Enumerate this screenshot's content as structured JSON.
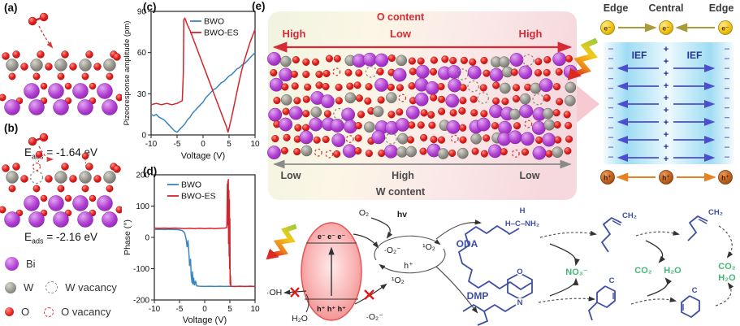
{
  "colors": {
    "bi": "#b13fd2",
    "w": "#93938b",
    "o": "#e01f1f",
    "red_accent": "#d62b36",
    "gray_arrow": "#8a8a8a",
    "molecule_blue": "#3d4fa1",
    "green": "#45b878",
    "bwo_blue": "#3b85c0",
    "bwoes_red": "#d4242c",
    "e_yellow": "#f2c41c",
    "h_orange": "#c2641f",
    "olive_arrow": "#a79b3a",
    "orange_arrow": "#e8811f",
    "ief_arrow": "#4d4dd0"
  },
  "panel_a": {
    "label": "(a)",
    "eads_symbol": "E",
    "eads_sub": "ads",
    "eads_value": "= -1.64 eV"
  },
  "panel_b": {
    "label": "(b)",
    "eads_symbol": "E",
    "eads_sub": "ads",
    "eads_value": "= -2.16 eV"
  },
  "atom_legend": {
    "bi": "Bi",
    "w": "W",
    "w_vacancy": "W vacancy",
    "o": "O",
    "o_vacancy": "O vacancy"
  },
  "chart_data": [
    {
      "id": "c",
      "panel_label": "(c)",
      "type": "line",
      "xlabel": "Voltage (V)",
      "ylabel": "Pizeoresponse amplitude (pm)",
      "xlim": [
        -10,
        10
      ],
      "ylim": [
        0,
        90
      ],
      "xticks": [
        -10,
        -5,
        0,
        5,
        10
      ],
      "yticks": [
        0,
        30,
        60,
        90
      ],
      "grid": false,
      "legend_position": "top-right",
      "series": [
        {
          "name": "BWO",
          "color": "#3b85c0",
          "points": [
            [
              -10,
              15
            ],
            [
              -9.5,
              14
            ],
            [
              -9,
              15
            ],
            [
              -8.5,
              13
            ],
            [
              -8,
              12
            ],
            [
              -7.5,
              11
            ],
            [
              -7,
              9
            ],
            [
              -6.5,
              7
            ],
            [
              -6,
              5
            ],
            [
              -5.5,
              3
            ],
            [
              -5,
              2
            ],
            [
              -4.5,
              4
            ],
            [
              -4,
              6
            ],
            [
              -3.5,
              8
            ],
            [
              -3,
              11
            ],
            [
              -2.5,
              13
            ],
            [
              -2,
              16
            ],
            [
              -1.5,
              18
            ],
            [
              -1,
              20
            ],
            [
              -0.5,
              22
            ],
            [
              0,
              24
            ],
            [
              0.5,
              27
            ],
            [
              1,
              29
            ],
            [
              1.5,
              31
            ],
            [
              2,
              33
            ],
            [
              2.5,
              34
            ],
            [
              3,
              36
            ],
            [
              3.5,
              38
            ],
            [
              4,
              39
            ],
            [
              4.5,
              41
            ],
            [
              5,
              43
            ],
            [
              5.5,
              44
            ],
            [
              6,
              46
            ],
            [
              6.5,
              48
            ],
            [
              7,
              49
            ],
            [
              7.5,
              51
            ],
            [
              8,
              52
            ],
            [
              8.5,
              54
            ],
            [
              9,
              56
            ],
            [
              9.5,
              58
            ],
            [
              10,
              60
            ]
          ]
        },
        {
          "name": "BWO-ES",
          "color": "#d4242c",
          "points": [
            [
              -10,
              22
            ],
            [
              -9,
              23
            ],
            [
              -8,
              22
            ],
            [
              -7,
              23
            ],
            [
              -6,
              22
            ],
            [
              -5,
              23
            ],
            [
              -4.5,
              24
            ],
            [
              -4,
              25
            ],
            [
              -3.8,
              45
            ],
            [
              -3.7,
              84
            ],
            [
              -3.5,
              85
            ],
            [
              -3,
              80
            ],
            [
              -2.5,
              76
            ],
            [
              -2,
              71
            ],
            [
              -1.5,
              66
            ],
            [
              -1,
              61
            ],
            [
              -0.5,
              56
            ],
            [
              0,
              51
            ],
            [
              0.5,
              46
            ],
            [
              1,
              41
            ],
            [
              1.5,
              36
            ],
            [
              2,
              31
            ],
            [
              2.5,
              26
            ],
            [
              3,
              21
            ],
            [
              3.5,
              16
            ],
            [
              4,
              11
            ],
            [
              4.5,
              6
            ],
            [
              4.8,
              2
            ],
            [
              5,
              5
            ],
            [
              5.5,
              13
            ],
            [
              6,
              22
            ],
            [
              6.5,
              31
            ],
            [
              7,
              40
            ],
            [
              7.5,
              48
            ],
            [
              8,
              55
            ],
            [
              8.5,
              61
            ],
            [
              9,
              67
            ],
            [
              9.5,
              72
            ],
            [
              10,
              77
            ]
          ]
        }
      ]
    },
    {
      "id": "d",
      "panel_label": "(d)",
      "type": "line",
      "xlabel": "Voltage (V)",
      "ylabel": "Phase (°)",
      "xlim": [
        -10,
        10
      ],
      "ylim": [
        -200,
        200
      ],
      "xticks": [
        -10,
        -5,
        0,
        5,
        10
      ],
      "yticks": [
        -200,
        -100,
        0,
        100,
        200
      ],
      "grid": false,
      "legend_position": "top-left",
      "series": [
        {
          "name": "BWO",
          "color": "#3b85c0",
          "points": [
            [
              -10,
              25
            ],
            [
              -9,
              26
            ],
            [
              -8,
              25
            ],
            [
              -7,
              26
            ],
            [
              -6,
              25
            ],
            [
              -5.5,
              25
            ],
            [
              -5,
              24
            ],
            [
              -4.5,
              22
            ],
            [
              -4,
              15
            ],
            [
              -3.7,
              -5
            ],
            [
              -3.5,
              -30
            ],
            [
              -3.3,
              -10
            ],
            [
              -3.1,
              -60
            ],
            [
              -3,
              -90
            ],
            [
              -2.8,
              -70
            ],
            [
              -2.7,
              -120
            ],
            [
              -2.5,
              -145
            ],
            [
              -2.4,
              -110
            ],
            [
              -2.3,
              -150
            ],
            [
              -2.2,
              -130
            ],
            [
              -2,
              -152
            ],
            [
              -1.8,
              -140
            ],
            [
              -1.6,
              -155
            ],
            [
              -1,
              -156
            ],
            [
              0,
              -157
            ],
            [
              1,
              -156
            ],
            [
              2,
              -157
            ],
            [
              3,
              -156
            ],
            [
              4,
              -157
            ],
            [
              5,
              -156
            ],
            [
              6,
              -157
            ],
            [
              7,
              -156
            ],
            [
              8,
              -157
            ],
            [
              9,
              -156
            ],
            [
              10,
              -157
            ]
          ]
        },
        {
          "name": "BWO-ES",
          "color": "#d4242c",
          "points": [
            [
              -10,
              30
            ],
            [
              -9,
              29
            ],
            [
              -8,
              30
            ],
            [
              -7,
              29
            ],
            [
              -6,
              30
            ],
            [
              -5,
              29
            ],
            [
              -4,
              28
            ],
            [
              -3,
              29
            ],
            [
              -2,
              28
            ],
            [
              -1,
              29
            ],
            [
              0,
              28
            ],
            [
              1,
              29
            ],
            [
              2,
              28
            ],
            [
              3,
              29
            ],
            [
              4,
              30
            ],
            [
              4.4,
              32
            ],
            [
              4.5,
              170
            ],
            [
              4.55,
              60
            ],
            [
              4.6,
              180
            ],
            [
              4.65,
              40
            ],
            [
              4.7,
              185
            ],
            [
              4.75,
              -20
            ],
            [
              4.8,
              150
            ],
            [
              4.85,
              -60
            ],
            [
              4.9,
              120
            ],
            [
              4.95,
              -100
            ],
            [
              5,
              60
            ],
            [
              5.05,
              -150
            ],
            [
              5.1,
              -120
            ],
            [
              5.2,
              -156
            ],
            [
              6,
              -157
            ],
            [
              7,
              -156
            ],
            [
              8,
              -157
            ],
            [
              9,
              -156
            ],
            [
              10,
              -157
            ]
          ]
        }
      ]
    }
  ],
  "panel_e": {
    "label": "(e)",
    "o_content": "O content",
    "top_high_left": "High",
    "top_low": "Low",
    "top_high_right": "High",
    "bottom_low_left": "Low",
    "bottom_high": "High",
    "bottom_low_right": "Low",
    "w_content": "W content"
  },
  "right_panel": {
    "edge_left": "Edge",
    "central": "Central",
    "edge_right": "Edge",
    "electron": "e⁻",
    "hole": "h⁺",
    "ief": "IEF",
    "plus": "+",
    "minus": "−",
    "minus_rows": 12,
    "plus_count": 10,
    "arrow_rows": 6
  },
  "scheme": {
    "o2": "O₂",
    "hv": "hv",
    "electrons": "e⁻ e⁻ e⁻",
    "holes": "h⁺ h⁺ h⁺",
    "superoxide": "·O₂⁻",
    "singlet": "¹O₂",
    "h_plus": "h⁺",
    "hydroxyl": "·OH",
    "water": "H₂O",
    "superoxide2": "·O₂⁻",
    "singlet2": "¹O₂",
    "oda": "ODA",
    "dmp": "DMP",
    "amine_h": "H",
    "amine_group": "H–C–NH₂",
    "ring_o": "O",
    "ring_n": "N",
    "nitrate": "NO₃⁻",
    "co2": "CO₂",
    "h2o": "H₂O",
    "ch2_mid": "CH₂",
    "ch2_final": "CH₂",
    "c_mid": "C",
    "c_final": "C",
    "co2_final": "CO₂",
    "h2o_final": "H₂O"
  }
}
